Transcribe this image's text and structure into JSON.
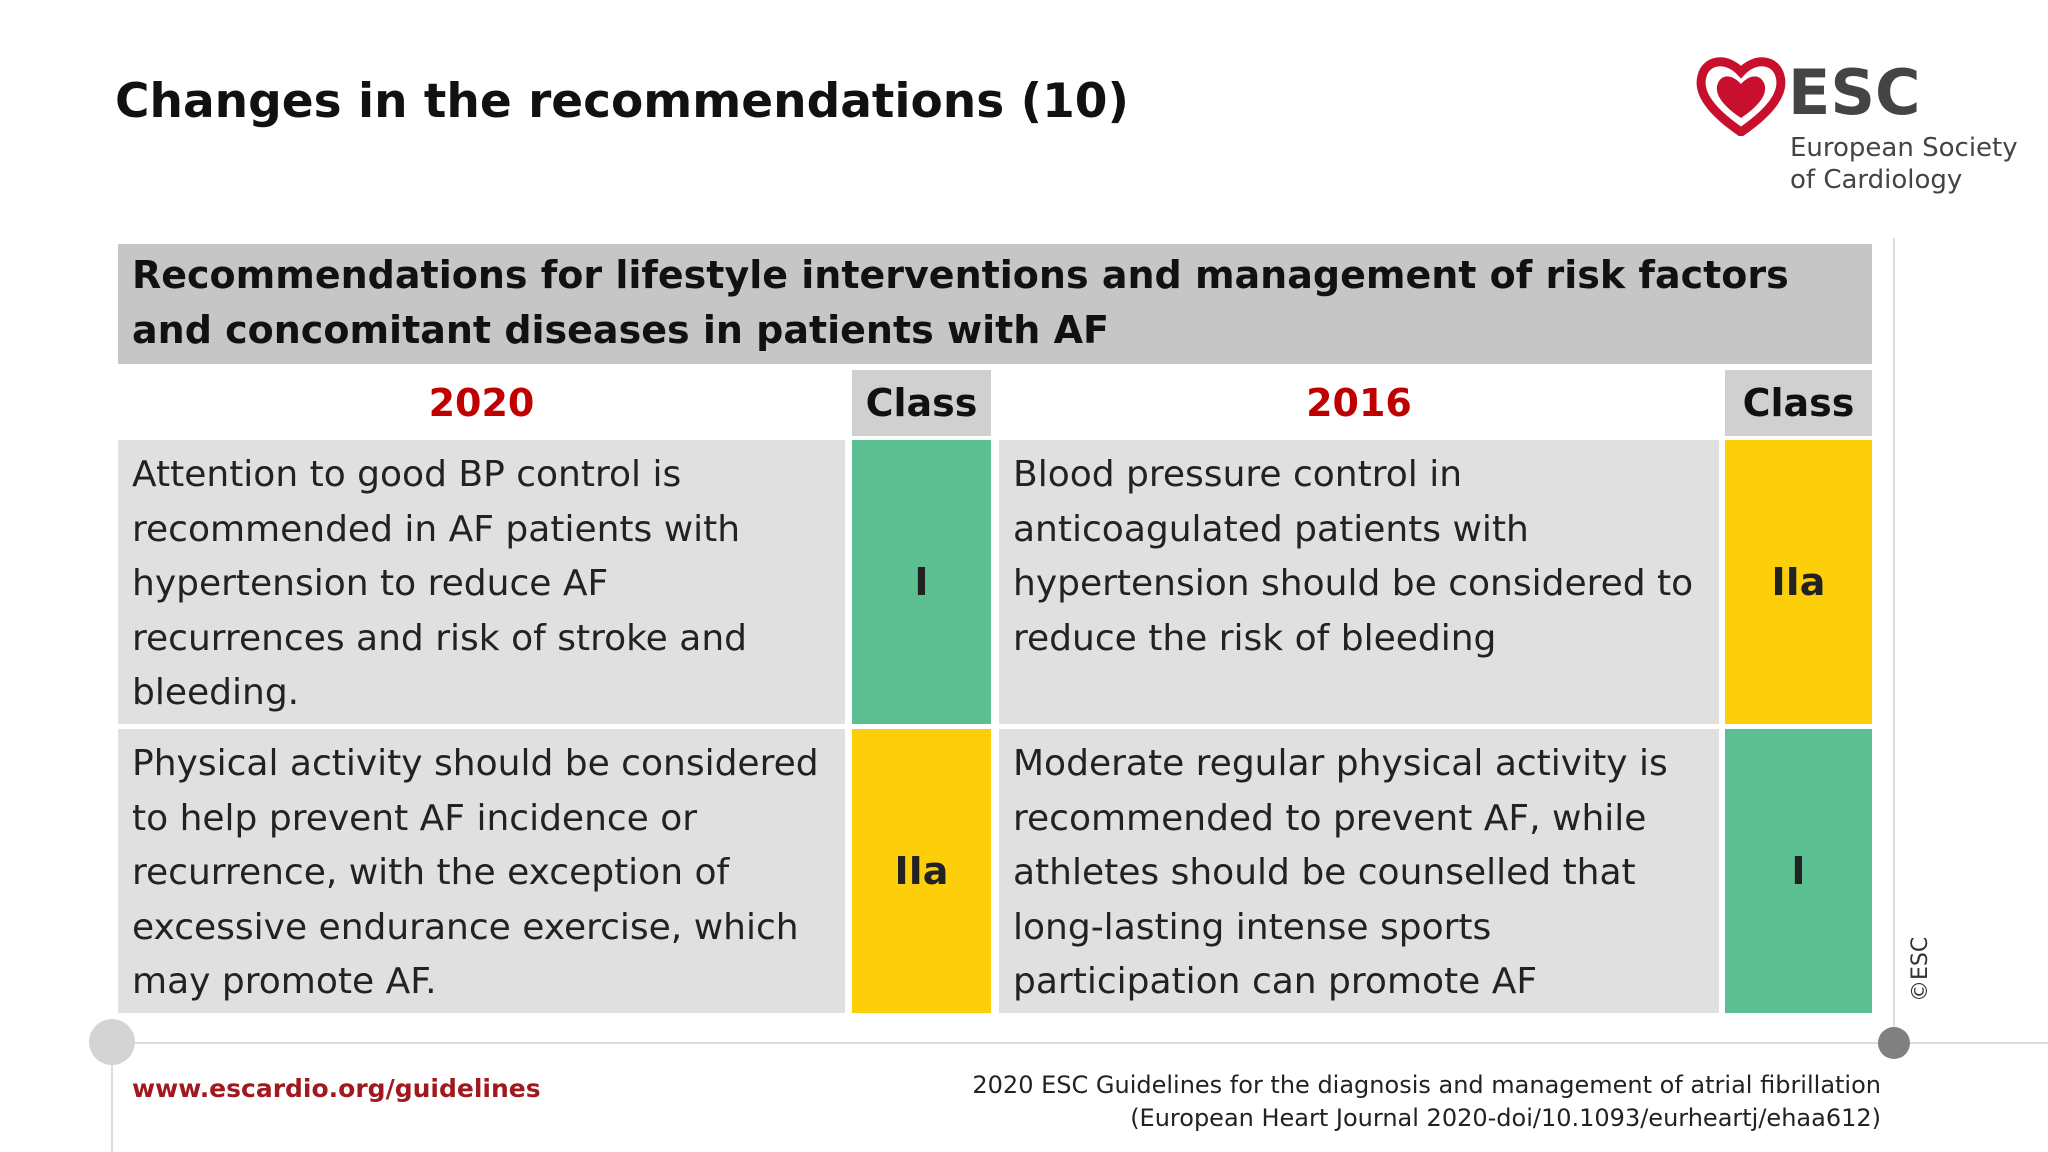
{
  "title": "Changes in the recommendations (10)",
  "logo": {
    "name": "ESC",
    "subtitle_lines": [
      "European Society",
      "of Cardiology"
    ]
  },
  "table": {
    "caption": "Recommendations for lifestyle interventions and management of risk factors and concomitant diseases in patients with AF",
    "columns": [
      "2020",
      "Class",
      "2016",
      "Class"
    ],
    "rows": [
      {
        "cells": [
          "Attention to good BP control is recommended in AF patients with hypertension to reduce AF recurrences and risk of stroke and bleeding.",
          "I",
          "Blood pressure control in anticoagulated patients with hypertension should be considered to reduce the risk of bleeding",
          "IIa"
        ],
        "class_colors": [
          "#5bbf91",
          "#fccf0a"
        ]
      },
      {
        "cells": [
          "Physical activity should be considered to help prevent AF incidence or recurrence, with the exception of excessive endurance exercise, which may promote AF.",
          "IIa",
          "Moderate regular physical activity is recommended to prevent AF, while athletes should be counselled that long-lasting intense sports participation can promote AF",
          "I"
        ],
        "class_colors": [
          "#fccf0a",
          "#5bbf91"
        ]
      }
    ]
  },
  "copyright": "©ESC",
  "footer": {
    "url": "www.escardio.org/guidelines",
    "citation_lines": [
      "2020 ESC Guidelines for the diagnosis and management of atrial fibrillation",
      "(European Heart Journal 2020-doi/10.1093/eurheartj/ehaa612)"
    ]
  }
}
